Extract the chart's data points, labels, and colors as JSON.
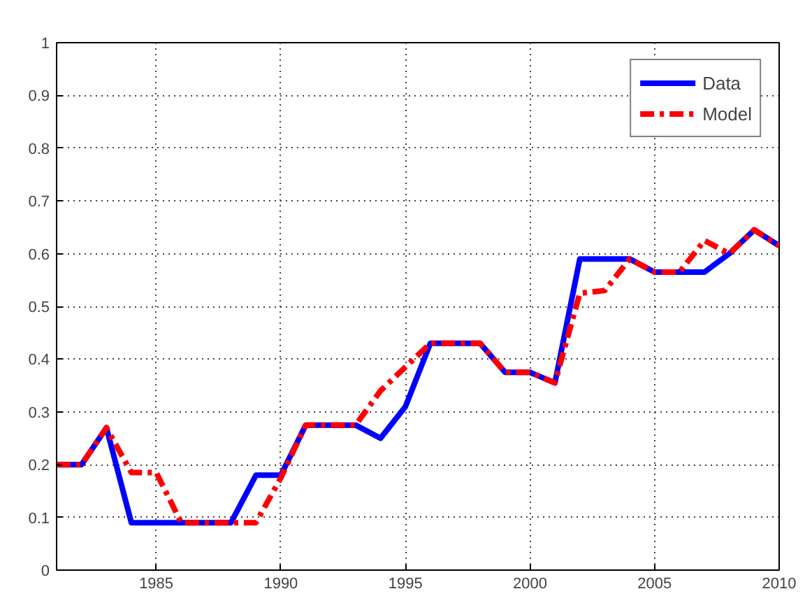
{
  "chart_data": {
    "type": "line",
    "x": [
      1981,
      1982,
      1983,
      1984,
      1985,
      1986,
      1987,
      1988,
      1989,
      1990,
      1991,
      1992,
      1993,
      1994,
      1995,
      1996,
      1997,
      1998,
      1999,
      2000,
      2001,
      2002,
      2003,
      2004,
      2005,
      2006,
      2007,
      2008,
      2009,
      2010
    ],
    "series": [
      {
        "name": "Data",
        "color": "#0000ff",
        "line_style": "solid",
        "values": [
          0.2,
          0.2,
          0.27,
          0.09,
          0.09,
          0.09,
          0.09,
          0.09,
          0.18,
          0.18,
          0.275,
          0.275,
          0.275,
          0.25,
          0.31,
          0.43,
          0.43,
          0.43,
          0.375,
          0.375,
          0.355,
          0.59,
          0.59,
          0.59,
          0.565,
          0.565,
          0.565,
          0.6,
          0.645,
          0.615
        ]
      },
      {
        "name": "Model",
        "color": "#ff0000",
        "line_style": "dashdot",
        "values": [
          0.2,
          0.2,
          0.27,
          0.185,
          0.185,
          0.09,
          0.09,
          0.09,
          0.09,
          0.175,
          0.275,
          0.275,
          0.275,
          0.34,
          0.385,
          0.43,
          0.43,
          0.43,
          0.375,
          0.375,
          0.355,
          0.525,
          0.53,
          0.59,
          0.565,
          0.565,
          0.625,
          0.6,
          0.645,
          0.615
        ]
      }
    ],
    "xlim": [
      1981,
      2010
    ],
    "xticks": [
      1985,
      1990,
      1995,
      2000,
      2005,
      2010
    ],
    "ylim": [
      0,
      1
    ],
    "yticks": [
      0,
      0.1,
      0.2,
      0.3,
      0.4,
      0.5,
      0.6,
      0.7,
      0.8,
      0.9,
      1
    ],
    "grid": true,
    "legend": "top right",
    "marker": "none"
  }
}
